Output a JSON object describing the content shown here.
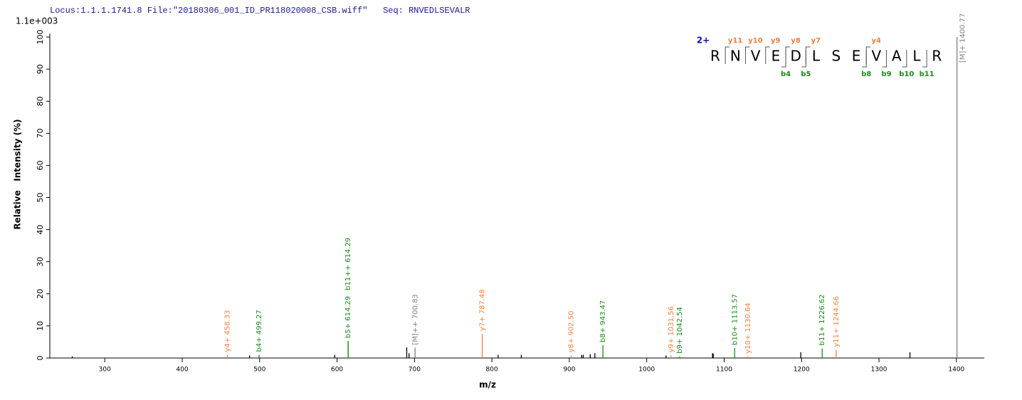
{
  "chart_data": {
    "type": "spectrum",
    "title": "Locus:1.1.1.1741.8 File:\"20180306_001_ID_PR118020008_CSB.wiff\"   Seq: RNVEDLSEVALR",
    "scale_label": "1.1e+003",
    "xlabel": "m/z",
    "ylabel": "Relative   Intensity (%)",
    "xlim": [
      229,
      1436
    ],
    "xticks": [
      300,
      400,
      500,
      600,
      700,
      800,
      900,
      1000,
      1100,
      1200,
      1300,
      1400
    ],
    "ylim": [
      0,
      100
    ],
    "yticks": [
      0,
      10,
      20,
      30,
      40,
      50,
      60,
      70,
      80,
      90,
      100
    ],
    "peak_groups": [
      {
        "color": "#1a8a1a",
        "x": [
          499.27,
          614.29,
          614.29,
          943.47,
          1042.54,
          1113.57,
          1226.62
        ],
        "values": [
          1.0,
          5.3,
          5.3,
          4.0,
          0.5,
          3.1,
          3.0
        ],
        "labels": [
          "b4+ 499.27",
          "b5+ 614.29",
          "b11++ 614.29",
          "b8+ 943.47",
          "b9+ 1042.54",
          "b10+ 1113.57",
          "b11+ 1226.62"
        ]
      },
      {
        "color": "#f08040",
        "x": [
          458.33,
          787.48,
          902.5,
          1031.56,
          1130.64,
          1244.66
        ],
        "values": [
          1.0,
          7.5,
          0.8,
          0.8,
          0.5,
          2.5
        ],
        "labels": [
          "y4+ 458.33",
          "y7+ 787.48",
          "y8+ 902.50",
          "y9+ 1031.56",
          "y10+ 1130.64",
          "y11+ 1244.66"
        ]
      },
      {
        "color": "#808080",
        "x": [
          700.83,
          1400.77
        ],
        "values": [
          3.2,
          100
        ],
        "labels": [
          "[M]++ 700.83",
          "[M]+ 1400.77"
        ]
      },
      {
        "color": "#000000",
        "x": [
          258,
          487,
          597,
          690,
          693,
          808,
          838,
          916,
          918,
          927,
          933,
          1025,
          1085,
          1086,
          1199,
          1340
        ],
        "values": [
          0.5,
          0.8,
          1.0,
          3.3,
          1.5,
          1.0,
          1.0,
          1.0,
          1.0,
          1.2,
          1.5,
          0.8,
          1.5,
          1.3,
          1.8,
          1.8
        ]
      }
    ],
    "sequence": {
      "charge": "2+",
      "residues": [
        "R",
        "N",
        "V",
        "E",
        "D",
        "L",
        "S",
        "E",
        "V",
        "A",
        "L",
        "R"
      ],
      "y_ions": [
        "y11",
        "y10",
        "y9",
        "y8",
        "y7",
        null,
        null,
        "y4",
        null,
        null,
        null
      ],
      "b_ions": [
        null,
        null,
        null,
        "b4",
        "b5",
        null,
        null,
        "b8",
        "b9",
        "b10",
        "b11"
      ],
      "y_color": "#f08040",
      "b_color": "#1a8a1a",
      "charge_color": "#1010b0"
    }
  }
}
